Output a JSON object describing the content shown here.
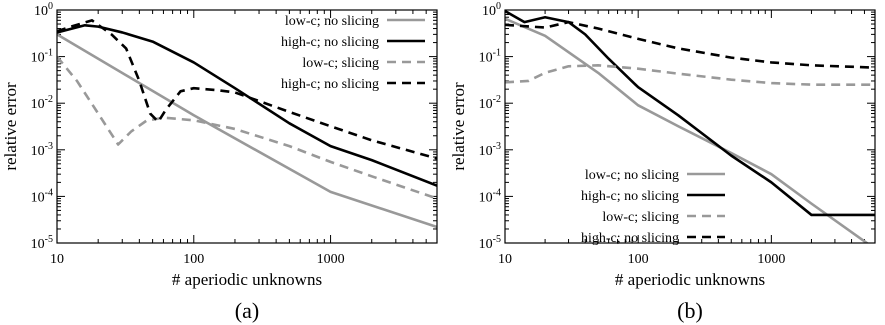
{
  "chart_data": [
    {
      "type": "line",
      "panel_label": "(a)",
      "xlabel": "# aperiodic unknowns",
      "ylabel": "relative error",
      "xscale": "log",
      "yscale": "log",
      "xlim": [
        10,
        6000
      ],
      "ylim": [
        1e-05,
        1
      ],
      "xticks": [
        {
          "value": 10,
          "label": "10"
        },
        {
          "value": 100,
          "label": "100"
        },
        {
          "value": 1000,
          "label": "1000"
        }
      ],
      "yticks": [
        {
          "value": 1,
          "base": "10",
          "exp": "0"
        },
        {
          "value": 0.1,
          "base": "10",
          "exp": "-1"
        },
        {
          "value": 0.01,
          "base": "10",
          "exp": "-2"
        },
        {
          "value": 0.001,
          "base": "10",
          "exp": "-3"
        },
        {
          "value": 0.0001,
          "base": "10",
          "exp": "-4"
        },
        {
          "value": 1e-05,
          "base": "10",
          "exp": "-5"
        }
      ],
      "legend_position": "top-right",
      "grid": false,
      "series": [
        {
          "name": "low-c; no slicing",
          "color": "#999999",
          "dash": "solid",
          "x": [
            10,
            100,
            1000,
            6000
          ],
          "y": [
            0.3,
            0.0055,
            0.000125,
            2.2e-05
          ]
        },
        {
          "name": "high-c; no slicing",
          "color": "#000000",
          "dash": "solid",
          "x": [
            10,
            16,
            20,
            30,
            50,
            100,
            200,
            500,
            1000,
            2000,
            6000
          ],
          "y": [
            0.33,
            0.47,
            0.44,
            0.33,
            0.21,
            0.075,
            0.021,
            0.0037,
            0.0012,
            0.0006,
            0.00017
          ]
        },
        {
          "name": "low-c; slicing",
          "color": "#999999",
          "dash": "dashed",
          "x": [
            10,
            14,
            20,
            28,
            35,
            45,
            60,
            100,
            200,
            500,
            1000,
            2000,
            6000
          ],
          "y": [
            0.1,
            0.03,
            0.006,
            0.0013,
            0.0025,
            0.0042,
            0.0049,
            0.0043,
            0.0028,
            0.0012,
            0.00055,
            0.00027,
            9e-05
          ]
        },
        {
          "name": "high-c; no slicing",
          "color": "#000000",
          "dash": "dashed",
          "x": [
            10,
            13,
            18,
            25,
            32,
            40,
            48,
            55,
            62,
            80,
            100,
            150,
            200,
            500,
            1000,
            2000,
            6000
          ],
          "y": [
            0.35,
            0.45,
            0.6,
            0.3,
            0.15,
            0.03,
            0.006,
            0.004,
            0.007,
            0.018,
            0.021,
            0.019,
            0.017,
            0.0065,
            0.0032,
            0.0016,
            0.00065
          ]
        }
      ]
    },
    {
      "type": "line",
      "panel_label": "(b)",
      "xlabel": "# aperiodic unknowns",
      "ylabel": "relative error",
      "xscale": "log",
      "yscale": "log",
      "xlim": [
        10,
        6000
      ],
      "ylim": [
        1e-05,
        1
      ],
      "xticks": [
        {
          "value": 10,
          "label": "10"
        },
        {
          "value": 100,
          "label": "100"
        },
        {
          "value": 1000,
          "label": "1000"
        }
      ],
      "yticks": [
        {
          "value": 1,
          "base": "10",
          "exp": "0"
        },
        {
          "value": 0.1,
          "base": "10",
          "exp": "-1"
        },
        {
          "value": 0.01,
          "base": "10",
          "exp": "-2"
        },
        {
          "value": 0.001,
          "base": "10",
          "exp": "-3"
        },
        {
          "value": 0.0001,
          "base": "10",
          "exp": "-4"
        },
        {
          "value": 1e-05,
          "base": "10",
          "exp": "-5"
        }
      ],
      "legend_position": "bottom-center",
      "grid": false,
      "series": [
        {
          "name": "low-c; no slicing",
          "color": "#999999",
          "dash": "solid",
          "x": [
            10,
            20,
            50,
            100,
            200,
            500,
            1000,
            2000,
            6000
          ],
          "y": [
            0.65,
            0.28,
            0.045,
            0.009,
            0.0032,
            0.00085,
            0.0003,
            7e-05,
            7.5e-06
          ]
        },
        {
          "name": "high-c; no slicing",
          "color": "#000000",
          "dash": "solid",
          "x": [
            10,
            14,
            20,
            30,
            40,
            60,
            100,
            200,
            500,
            1000,
            2000,
            6000
          ],
          "y": [
            0.95,
            0.55,
            0.7,
            0.55,
            0.3,
            0.09,
            0.022,
            0.0055,
            0.00075,
            0.0002,
            4e-05,
            4e-05
          ]
        },
        {
          "name": "low-c; slicing",
          "color": "#999999",
          "dash": "dashed",
          "x": [
            10,
            15,
            20,
            30,
            50,
            100,
            200,
            500,
            1000,
            2000,
            6000
          ],
          "y": [
            0.028,
            0.03,
            0.045,
            0.062,
            0.065,
            0.055,
            0.043,
            0.032,
            0.027,
            0.025,
            0.025
          ]
        },
        {
          "name": "high-c; no slicing",
          "color": "#000000",
          "dash": "dashed",
          "x": [
            10,
            20,
            30,
            50,
            100,
            200,
            500,
            1000,
            2000,
            6000
          ],
          "y": [
            0.48,
            0.42,
            0.55,
            0.4,
            0.24,
            0.15,
            0.095,
            0.075,
            0.065,
            0.058
          ]
        }
      ]
    }
  ]
}
